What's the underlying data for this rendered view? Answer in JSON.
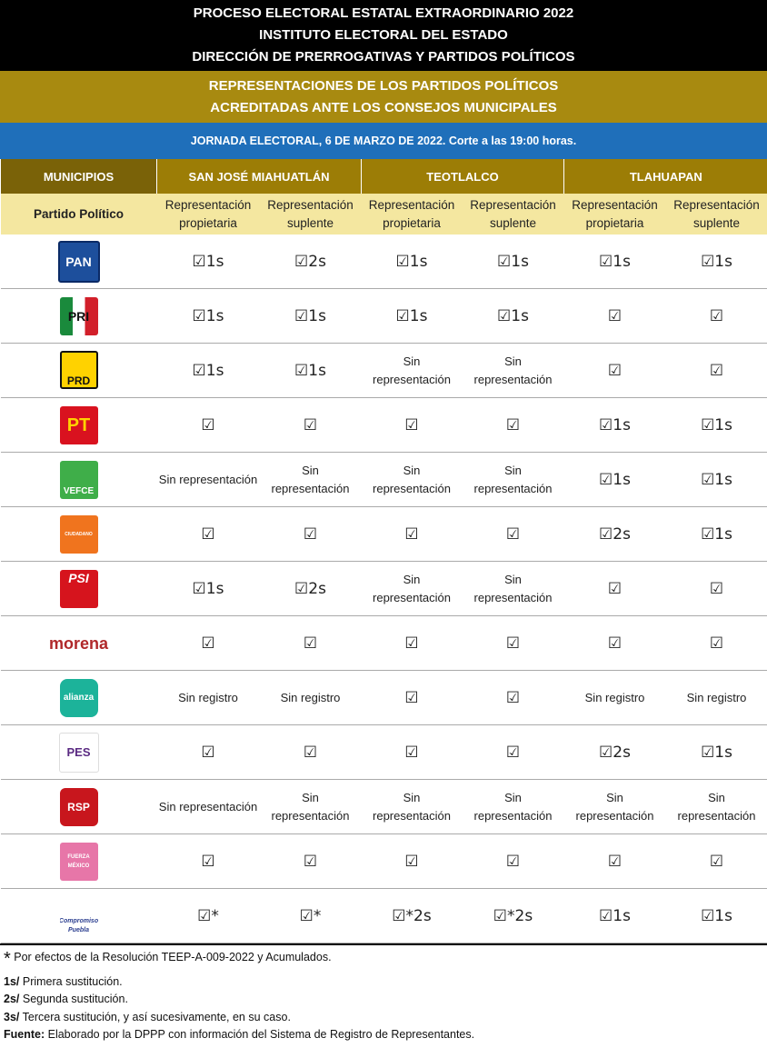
{
  "header": {
    "lines": [
      "PROCESO ELECTORAL ESTATAL EXTRAORDINARIO 2022",
      "INSTITUTO ELECTORAL DEL ESTADO",
      "DIRECCIÓN DE PRERROGATIVAS Y PARTIDOS POLÍTICOS"
    ],
    "subtitle": [
      "REPRESENTACIONES DE LOS PARTIDOS POLÍTICOS",
      "ACREDITADAS ANTE LOS  CONSEJOS MUNICIPALES"
    ],
    "date": "JORNADA ELECTORAL, 6 DE MARZO DE 2022. Corte a las 19:00 horas."
  },
  "table": {
    "first_header": "MUNICIPIOS",
    "municipalities": [
      "SAN JOSÉ MIAHUATLÁN",
      "TEOTLALCO",
      "TLAHUAPAN"
    ],
    "sub_first": "Partido Político",
    "sub_columns": [
      "Representación propietaria",
      "Representación suplente",
      "Representación propietaria",
      "Representación suplente",
      "Representación propietaria",
      "Representación suplente"
    ],
    "rows": [
      {
        "logo": "PAN",
        "cells": [
          "☑1s",
          "☑2s",
          "☑1s",
          "☑1s",
          "☑1s",
          "☑1s"
        ]
      },
      {
        "logo": "PRI",
        "cells": [
          "☑1s",
          "☑1s",
          "☑1s",
          "☑1s",
          "☑",
          "☑"
        ]
      },
      {
        "logo": "PRD",
        "cells": [
          "☑1s",
          "☑1s",
          "Sin representación",
          "Sin representación",
          "☑",
          "☑"
        ]
      },
      {
        "logo": "PT",
        "cells": [
          "☑",
          "☑",
          "☑",
          "☑",
          "☑1s",
          "☑1s"
        ]
      },
      {
        "logo": "VEFCE",
        "cells": [
          "Sin representación",
          "Sin representación",
          "Sin representación",
          "Sin representación",
          "☑1s",
          "☑1s"
        ]
      },
      {
        "logo": "CIUDADANO",
        "cells": [
          "☑",
          "☑",
          "☑",
          "☑",
          "☑2s",
          "☑1s"
        ]
      },
      {
        "logo": "PSI",
        "cells": [
          "☑1s",
          "☑2s",
          "Sin representación",
          "Sin representación",
          "☑",
          "☑"
        ]
      },
      {
        "logo": "morena",
        "cells": [
          "☑",
          "☑",
          "☑",
          "☑",
          "☑",
          "☑"
        ]
      },
      {
        "logo": "alianza",
        "cells": [
          "Sin registro",
          "Sin registro",
          "☑",
          "☑",
          "Sin registro",
          "Sin registro"
        ]
      },
      {
        "logo": "PES",
        "cells": [
          "☑",
          "☑",
          "☑",
          "☑",
          "☑2s",
          "☑1s"
        ]
      },
      {
        "logo": "RSP",
        "cells": [
          "Sin representación",
          "Sin representación",
          "Sin representación",
          "Sin representación",
          "Sin representación",
          "Sin representación"
        ]
      },
      {
        "logo": "FUERZA MÉXICO",
        "cells": [
          "☑",
          "☑",
          "☑",
          "☑",
          "☑",
          "☑"
        ]
      },
      {
        "logo": "Compromiso Puebla",
        "cells": [
          "☑*",
          "☑*",
          "☑*2s",
          "☑*2s",
          "☑1s",
          "☑1s"
        ]
      }
    ]
  },
  "footer": {
    "asterisk": {
      "mark": "*",
      "text": " Por efectos de la Resolución TEEP-A-009-2022 y Acumulados."
    },
    "notes": [
      {
        "key": "1s/",
        "text": " Primera sustitución."
      },
      {
        "key": "2s/",
        "text": " Segunda sustitución."
      },
      {
        "key": "3s/",
        "text": " Tercera sustitución, y así sucesivamente, en su caso."
      }
    ],
    "source": {
      "key": "Fuente:",
      "text": " Elaborado por la DPPP con información del Sistema de Registro de Representantes."
    }
  }
}
